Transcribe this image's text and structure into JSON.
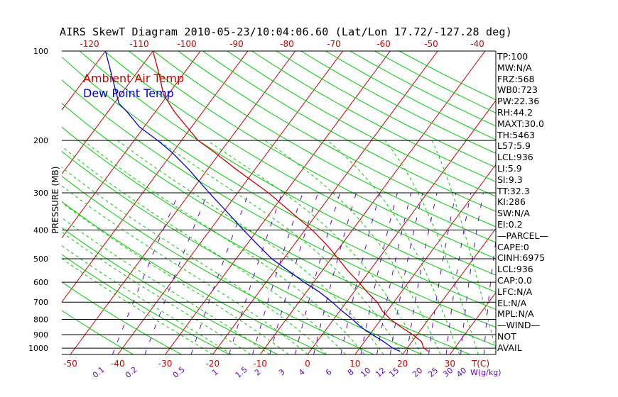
{
  "title": "AIRS SkewT Diagram 2010-05-23/10:04:06.60 (Lat/Lon 17.72/-127.28 deg)",
  "colors": {
    "temp": "#cc0000",
    "dew": "#0000cc",
    "isotherm": "#cc0000",
    "dry_adiabat": "#00cc00",
    "moist_adiabat": "#00cc00",
    "mixing_ratio": "#6600cc",
    "isobar": "#000000",
    "axis_text_red": "#cc0000",
    "mixing_text": "#6600cc"
  },
  "chart_data": {
    "type": "line",
    "ylabel": "PRESSURE (MB)",
    "xlabel_bottom": "T(C)",
    "mixing_ratio_unit": "W(g/kg)",
    "y_scale": "log",
    "ylim": [
      1050,
      100
    ],
    "pressure_ticks": [
      100,
      200,
      300,
      400,
      500,
      600,
      700,
      800,
      900,
      1000
    ],
    "bottom_temp_ticks": [
      -50,
      -40,
      -30,
      -20,
      -10,
      0,
      10,
      20,
      30
    ],
    "top_temp_ticks": [
      -120,
      -110,
      -100,
      -90,
      -80,
      -70,
      -60,
      -50,
      -40
    ],
    "mixing_ratio_labels": [
      "0.1",
      "0.2",
      "0.5",
      "1",
      "1.5",
      "2",
      "3",
      "4",
      "6",
      "8",
      "10",
      "12",
      "15",
      "20",
      "25",
      "30",
      "40"
    ],
    "legend": [
      "Ambient Air Temp",
      "Dew Point Temp"
    ],
    "series": [
      {
        "name": "Ambient Air Temp",
        "points": [
          {
            "p": 1025,
            "t": 25
          },
          {
            "p": 1000,
            "t": 23.5
          },
          {
            "p": 950,
            "t": 22
          },
          {
            "p": 900,
            "t": 19
          },
          {
            "p": 850,
            "t": 15.5
          },
          {
            "p": 800,
            "t": 12
          },
          {
            "p": 750,
            "t": 9
          },
          {
            "p": 700,
            "t": 6.5
          },
          {
            "p": 650,
            "t": 3
          },
          {
            "p": 600,
            "t": -0.5
          },
          {
            "p": 550,
            "t": -4.5
          },
          {
            "p": 500,
            "t": -8.5
          },
          {
            "p": 450,
            "t": -13
          },
          {
            "p": 400,
            "t": -18.5
          },
          {
            "p": 350,
            "t": -25.5
          },
          {
            "p": 300,
            "t": -33.5
          },
          {
            "p": 250,
            "t": -44
          },
          {
            "p": 220,
            "t": -51
          },
          {
            "p": 200,
            "t": -56.5
          },
          {
            "p": 180,
            "t": -61
          },
          {
            "p": 160,
            "t": -66
          },
          {
            "p": 140,
            "t": -71
          },
          {
            "p": 120,
            "t": -75
          },
          {
            "p": 100,
            "t": -80
          }
        ]
      },
      {
        "name": "Dew Point Temp",
        "points": [
          {
            "p": 1025,
            "t": 19
          },
          {
            "p": 1000,
            "t": 17
          },
          {
            "p": 950,
            "t": 14
          },
          {
            "p": 900,
            "t": 10.5
          },
          {
            "p": 850,
            "t": 7
          },
          {
            "p": 800,
            "t": 4
          },
          {
            "p": 750,
            "t": 0.5
          },
          {
            "p": 700,
            "t": -3
          },
          {
            "p": 650,
            "t": -7
          },
          {
            "p": 600,
            "t": -12
          },
          {
            "p": 550,
            "t": -17
          },
          {
            "p": 500,
            "t": -22.5
          },
          {
            "p": 450,
            "t": -27.5
          },
          {
            "p": 400,
            "t": -33
          },
          {
            "p": 350,
            "t": -39
          },
          {
            "p": 300,
            "t": -46
          },
          {
            "p": 250,
            "t": -54
          },
          {
            "p": 220,
            "t": -60
          },
          {
            "p": 200,
            "t": -65
          },
          {
            "p": 180,
            "t": -71
          },
          {
            "p": 160,
            "t": -76
          },
          {
            "p": 150,
            "t": -79
          },
          {
            "p": 100,
            "t": -90
          }
        ]
      }
    ]
  },
  "indices": [
    "TP:100",
    "MW:N/A",
    "FRZ:568",
    "WB0:723",
    "PW:22.36",
    "RH:44.2",
    "MAXT:30.0",
    "TH:5463",
    "L57:5.9",
    "LCL:936",
    "LI:5.9",
    "SI:9.3",
    "TT:32.3",
    "KI:286",
    "SW:N/A",
    "EI:0.2",
    "—PARCEL—",
    "CAPE:0",
    "CINH:6975",
    "LCL:936",
    "CAP:0.0",
    "LFC:N/A",
    "EL:N/A",
    "MPL:N/A",
    "—WIND—",
    "NOT",
    "AVAIL"
  ]
}
